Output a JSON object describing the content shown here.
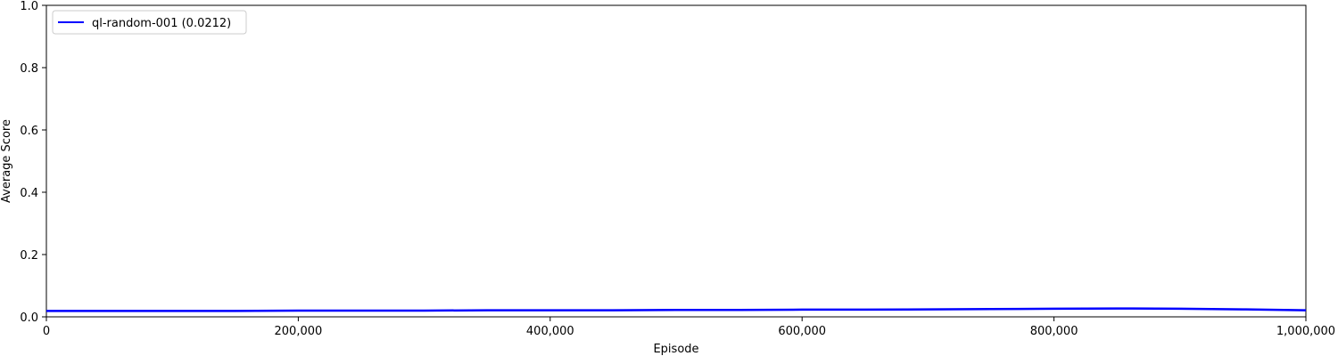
{
  "chart_data": {
    "type": "line",
    "title": "",
    "xlabel": "Episode",
    "ylabel": "Average Score",
    "xlim": [
      0,
      1000000
    ],
    "ylim": [
      0,
      1.0
    ],
    "x_ticks": [
      0,
      200000,
      400000,
      600000,
      800000,
      1000000
    ],
    "x_tick_labels": [
      "0",
      "200,000",
      "400,000",
      "600,000",
      "800,000",
      "1,000,000"
    ],
    "y_ticks": [
      0.0,
      0.2,
      0.4,
      0.6,
      0.8,
      1.0
    ],
    "y_tick_labels": [
      "0.0",
      "0.2",
      "0.4",
      "0.6",
      "0.8",
      "1.0"
    ],
    "grid": false,
    "legend_position": "top-left",
    "series": [
      {
        "name": "ql-random-001 (0.0212)",
        "color": "#0000ff",
        "x": [
          0,
          50000,
          100000,
          150000,
          200000,
          250000,
          300000,
          350000,
          400000,
          450000,
          500000,
          550000,
          600000,
          650000,
          700000,
          750000,
          800000,
          850000,
          900000,
          950000,
          1000000
        ],
        "y": [
          0.019,
          0.019,
          0.019,
          0.019,
          0.02,
          0.02,
          0.02,
          0.021,
          0.021,
          0.021,
          0.022,
          0.022,
          0.023,
          0.023,
          0.024,
          0.025,
          0.026,
          0.027,
          0.026,
          0.024,
          0.021
        ]
      }
    ]
  }
}
